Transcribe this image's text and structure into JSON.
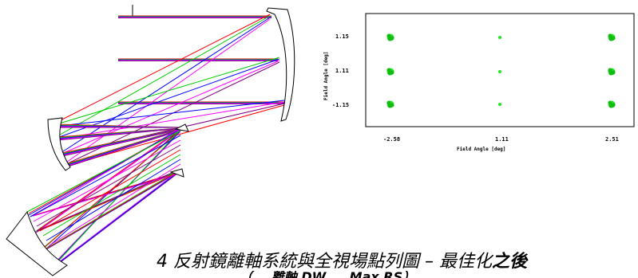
{
  "caption": {
    "main": "4 反射鏡離軸系統與全視場點列圖 – 最佳化",
    "emphasis": "之後",
    "sub_clipped": "（... 離軸 DW ... Max RS）"
  },
  "spot_diagram": {
    "y_axis_title": "Field Angle [deg]",
    "x_axis_title": "Field Angle [deg]",
    "y_ticks": [
      "1.15",
      "1.11",
      "-1.15"
    ],
    "x_ticks": [
      "-2.58",
      "1.11",
      "2.51"
    ],
    "spot_color": "#22e622",
    "spots": [
      {
        "field_x": "-2.58",
        "field_y": "1.15",
        "size": "large"
      },
      {
        "field_x": "1.11",
        "field_y": "1.15",
        "size": "small"
      },
      {
        "field_x": "2.51",
        "field_y": "1.15",
        "size": "large"
      },
      {
        "field_x": "-2.58",
        "field_y": "1.11",
        "size": "large"
      },
      {
        "field_x": "1.11",
        "field_y": "1.11",
        "size": "small"
      },
      {
        "field_x": "2.51",
        "field_y": "1.11",
        "size": "large"
      },
      {
        "field_x": "-2.58",
        "field_y": "-1.15",
        "size": "large"
      },
      {
        "field_x": "1.11",
        "field_y": "-1.15",
        "size": "small"
      },
      {
        "field_x": "2.51",
        "field_y": "-1.15",
        "size": "large"
      }
    ]
  },
  "ray_trace": {
    "ray_colors": [
      "#ff0000",
      "#00cc00",
      "#0000ff",
      "#ff00ff",
      "#800080"
    ]
  }
}
